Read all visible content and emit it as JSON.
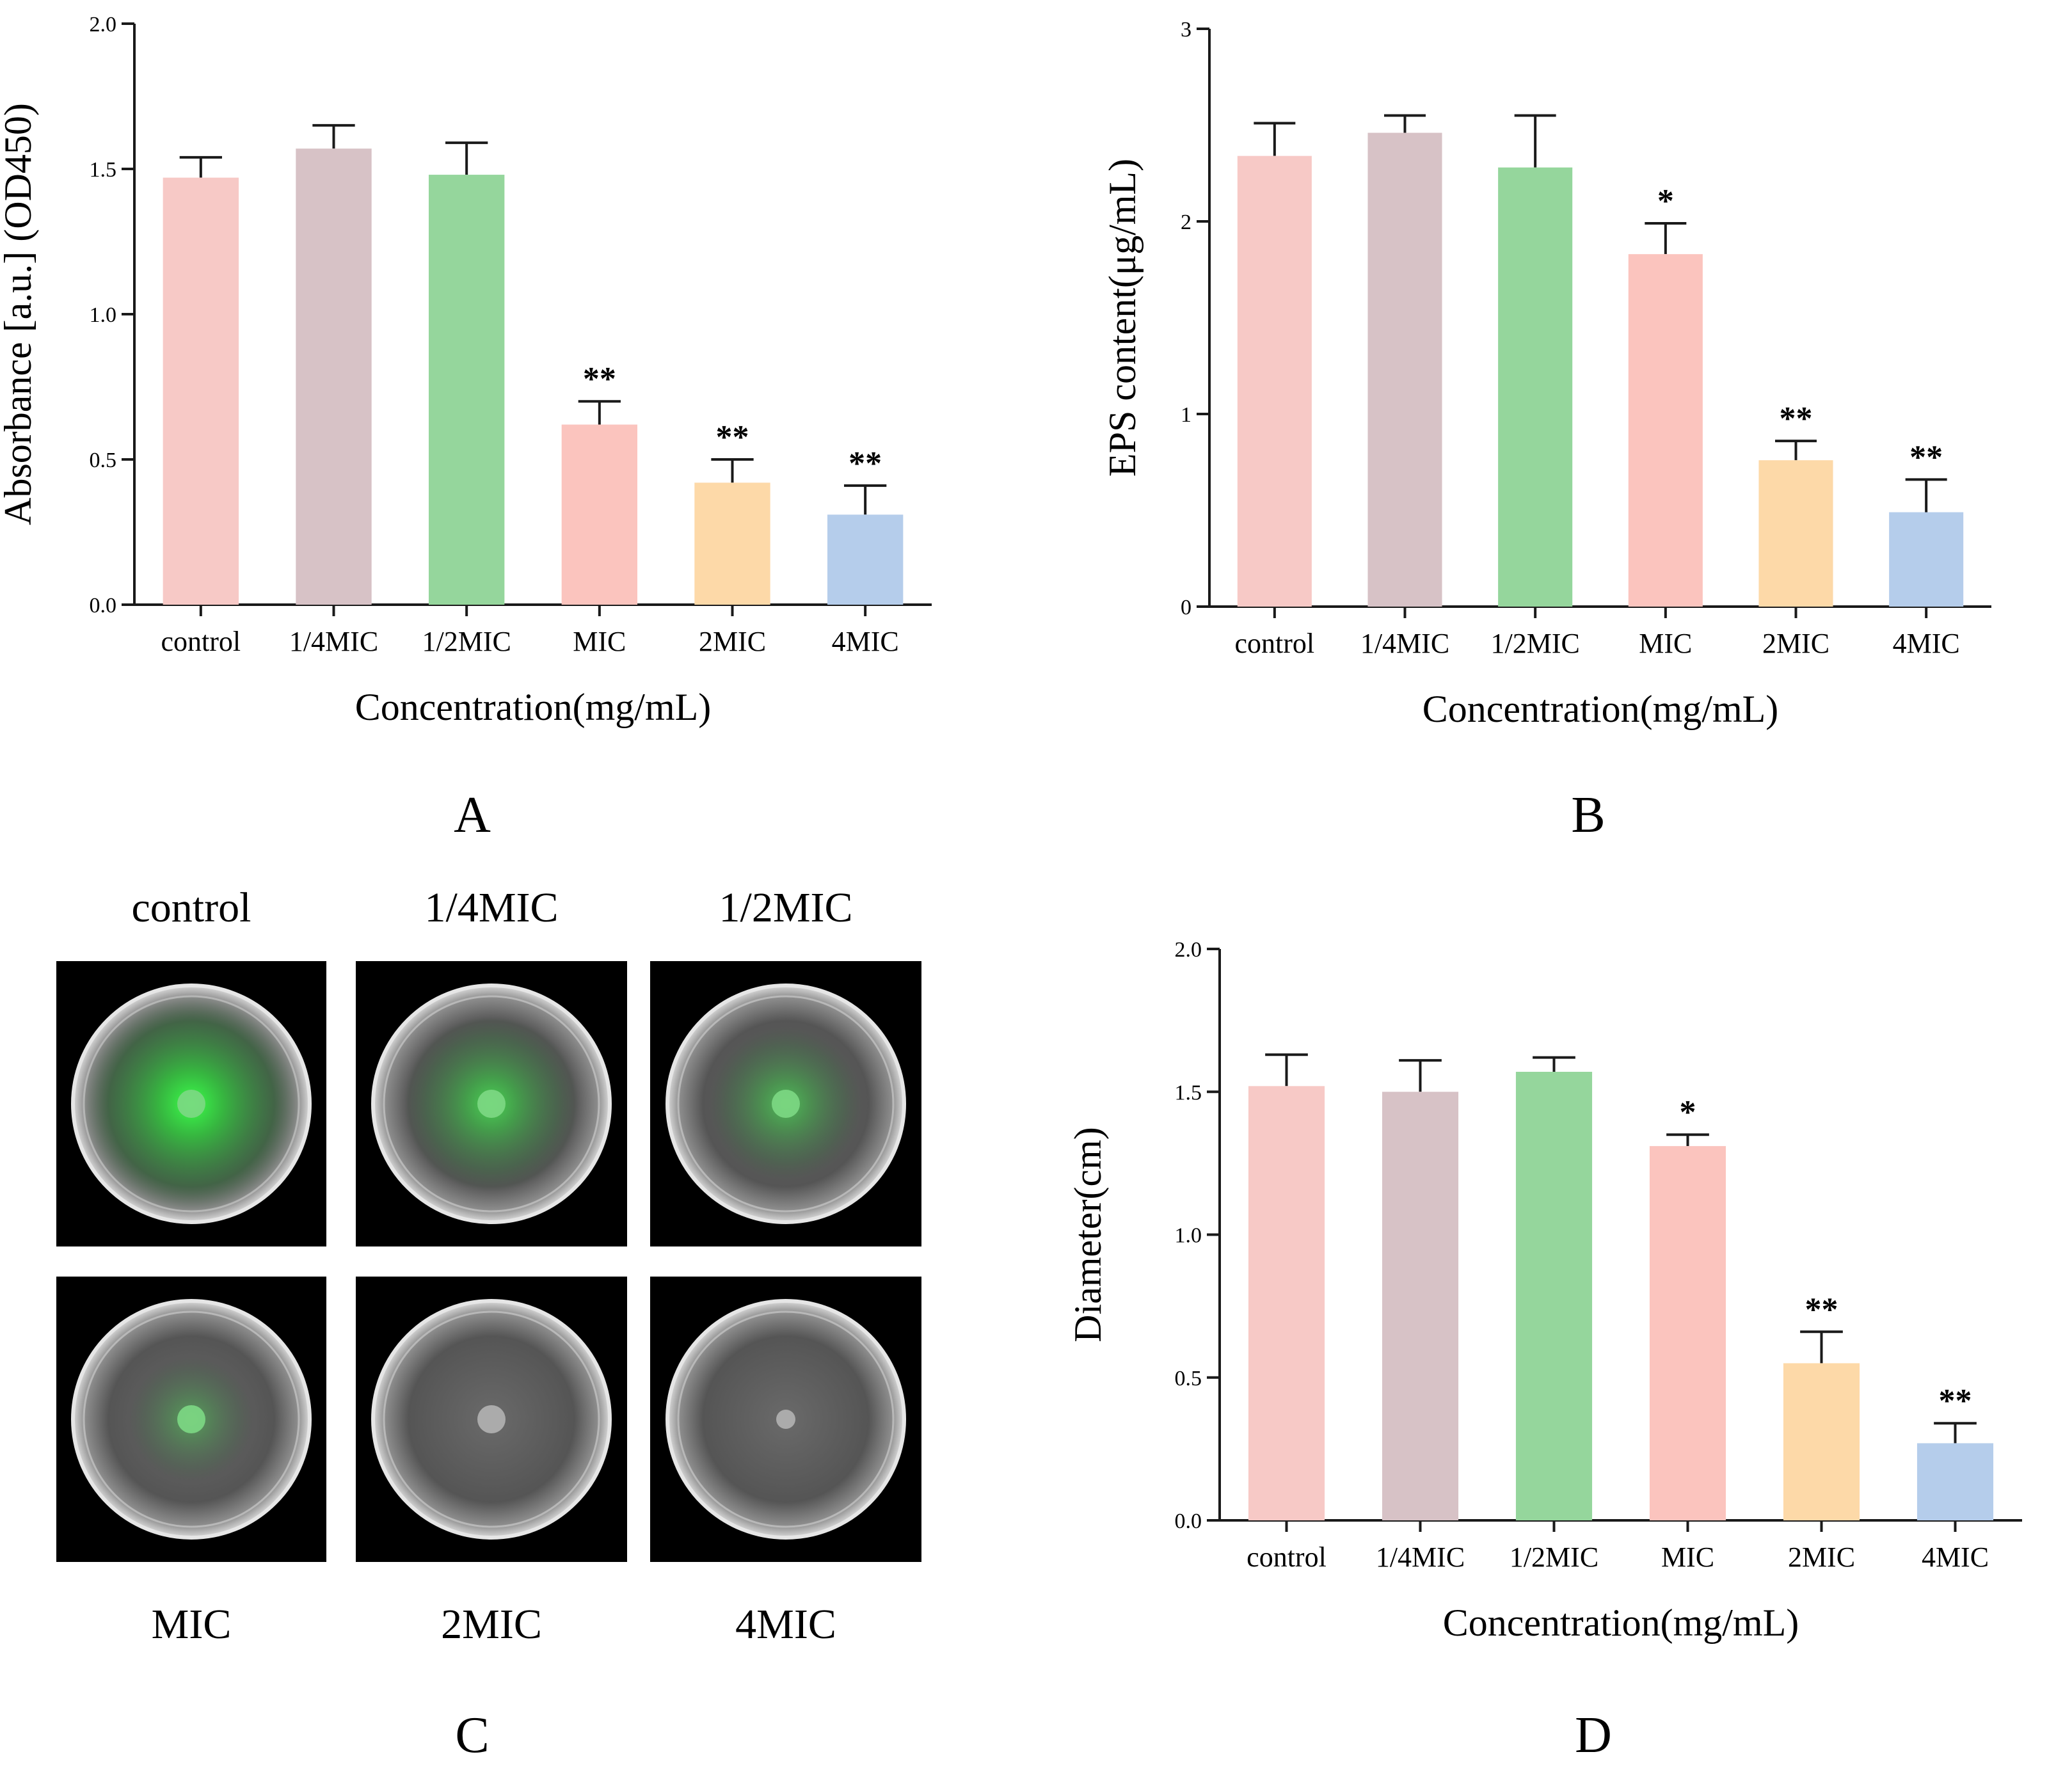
{
  "colors": {
    "bars": [
      "#f7c9c6",
      "#d7c2c6",
      "#95d69c",
      "#fbc4be",
      "#fdd9a8",
      "#b5cdeb"
    ],
    "axis": "#1a1a1a",
    "plate_bg": "#000000"
  },
  "chart_data": [
    {
      "panel": "A",
      "type": "bar",
      "categories": [
        "control",
        "1/4MIC",
        "1/2MIC",
        "MIC",
        "2MIC",
        "4MIC"
      ],
      "values": [
        1.47,
        1.57,
        1.48,
        0.62,
        0.42,
        0.31
      ],
      "errors": [
        0.07,
        0.08,
        0.11,
        0.08,
        0.08,
        0.1
      ],
      "significance": [
        "",
        "",
        "",
        "**",
        "**",
        "**"
      ],
      "xlabel": "Concentration(mg/mL)",
      "ylabel": "Absorbance [a.u.] (OD450)",
      "ylim": [
        0,
        2.0
      ],
      "yticks": [
        "0.0",
        "0.5",
        "1.0",
        "1.5",
        "2.0"
      ],
      "grid": false
    },
    {
      "panel": "B",
      "type": "bar",
      "categories": [
        "control",
        "1/4MIC",
        "1/2MIC",
        "MIC",
        "2MIC",
        "4MIC"
      ],
      "values": [
        2.34,
        2.46,
        2.28,
        1.83,
        0.76,
        0.49
      ],
      "errors": [
        0.17,
        0.09,
        0.27,
        0.16,
        0.1,
        0.17
      ],
      "significance": [
        "",
        "",
        "",
        "*",
        "**",
        "**"
      ],
      "xlabel": "Concentration(mg/mL)",
      "ylabel": "EPS content(μg/mL)",
      "ylim": [
        0,
        3
      ],
      "yticks": [
        "0",
        "1",
        "2",
        "3"
      ],
      "grid": false
    },
    {
      "panel": "C",
      "type": "table",
      "plates": [
        {
          "label": "control",
          "glow": 1.0
        },
        {
          "label": "1/4MIC",
          "glow": 0.7
        },
        {
          "label": "1/2MIC",
          "glow": 0.55
        },
        {
          "label": "MIC",
          "glow": 0.35
        },
        {
          "label": "2MIC",
          "glow": 0.0
        },
        {
          "label": "4MIC",
          "glow": 0.0
        }
      ]
    },
    {
      "panel": "D",
      "type": "bar",
      "categories": [
        "control",
        "1/4MIC",
        "1/2MIC",
        "MIC",
        "2MIC",
        "4MIC"
      ],
      "values": [
        1.52,
        1.5,
        1.57,
        1.31,
        0.55,
        0.27
      ],
      "errors": [
        0.11,
        0.11,
        0.05,
        0.04,
        0.11,
        0.07
      ],
      "significance": [
        "",
        "",
        "",
        "*",
        "**",
        "**"
      ],
      "xlabel": "Concentration(mg/mL)",
      "ylabel": "Diameter(cm)",
      "ylim": [
        0,
        2.0
      ],
      "yticks": [
        "0.0",
        "0.5",
        "1.0",
        "1.5",
        "2.0"
      ],
      "grid": false
    }
  ],
  "panel_labels": {
    "a": "A",
    "b": "B",
    "c": "C",
    "d": "D"
  }
}
